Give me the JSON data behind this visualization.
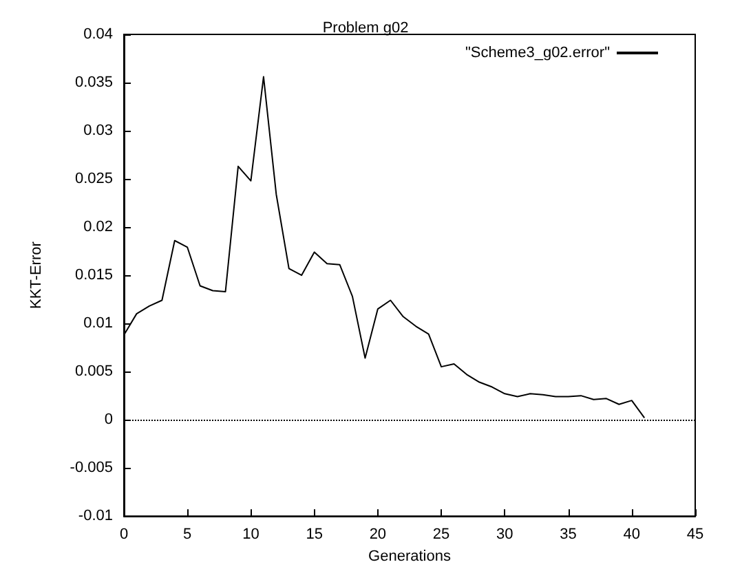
{
  "chart_data": {
    "type": "line",
    "title": "Problem g02",
    "xlabel": "Generations",
    "ylabel": "KKT-Error",
    "x": [
      0,
      1,
      2,
      3,
      4,
      5,
      6,
      7,
      8,
      9,
      10,
      11,
      12,
      13,
      14,
      15,
      16,
      17,
      18,
      19,
      20,
      21,
      22,
      23,
      24,
      25,
      26,
      27,
      28,
      29,
      30,
      31,
      32,
      33,
      34,
      35,
      36,
      37,
      38,
      39,
      40,
      41
    ],
    "series": [
      {
        "name": "\"Scheme3_g02.error\"",
        "color": "#000000",
        "values": [
          0.0088,
          0.011,
          0.0118,
          0.0124,
          0.0186,
          0.0179,
          0.0139,
          0.0134,
          0.0133,
          0.0263,
          0.0248,
          0.0356,
          0.0234,
          0.0157,
          0.015,
          0.0174,
          0.0162,
          0.0161,
          0.0128,
          0.0064,
          0.0115,
          0.0124,
          0.0107,
          0.0097,
          0.0089,
          0.0055,
          0.0058,
          0.0047,
          0.0039,
          0.0034,
          0.0027,
          0.0024,
          0.0027,
          0.0026,
          0.0024,
          0.0024,
          0.0025,
          0.0021,
          0.0022,
          0.0016,
          0.002,
          0.0002
        ]
      }
    ],
    "xlim": [
      0,
      45
    ],
    "xticks": [
      0,
      5,
      10,
      15,
      20,
      25,
      30,
      35,
      40,
      45
    ],
    "ylim": [
      -0.01,
      0.04
    ],
    "yticks": [
      -0.01,
      -0.005,
      0,
      0.005,
      0.01,
      0.015,
      0.02,
      0.025,
      0.03,
      0.035,
      0.04
    ],
    "ref_lines": [
      {
        "axis": "y",
        "value": 0,
        "color": "#000000",
        "line_style": "dotted"
      }
    ],
    "legend": "top right",
    "grid": false,
    "marker": "none",
    "line_style": "solid"
  }
}
